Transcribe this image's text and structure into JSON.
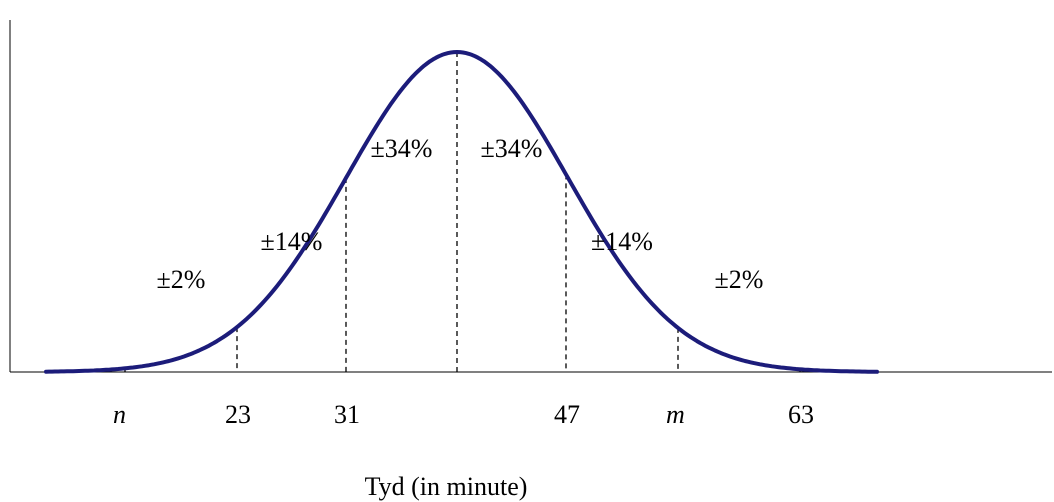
{
  "chart_data": {
    "type": "line",
    "xlabel": "Tyd (in minute)",
    "ylabel": "",
    "ticks": [
      {
        "label": "n",
        "italic": true
      },
      {
        "label": "23",
        "italic": false
      },
      {
        "label": "31",
        "italic": false
      },
      {
        "label": "",
        "italic": false
      },
      {
        "label": "47",
        "italic": false
      },
      {
        "label": "m",
        "italic": true
      },
      {
        "label": "63",
        "italic": false
      }
    ],
    "regions": [
      {
        "label": "±2%",
        "level": 0.29
      },
      {
        "label": "±14%",
        "level": 0.41
      },
      {
        "label": "±34%",
        "level": 0.7
      },
      {
        "label": "±34%",
        "level": 0.7
      },
      {
        "label": "±14%",
        "level": 0.41
      },
      {
        "label": "±2%",
        "level": 0.29
      }
    ],
    "curve_color": "#1c1c7a",
    "grid": false,
    "legend": "none"
  }
}
